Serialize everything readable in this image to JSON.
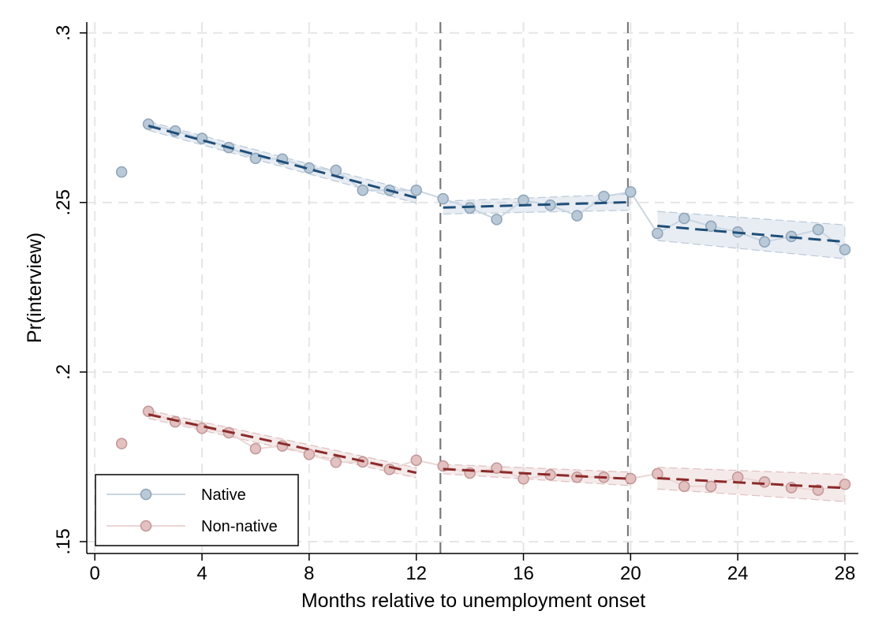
{
  "chart_data": {
    "type": "scatter",
    "title": "",
    "xlabel": "Months relative to unemployment onset",
    "ylabel": "Pr(interview)",
    "xlim": [
      -0.3,
      28.5
    ],
    "ylim": [
      0.1465,
      0.3032
    ],
    "xticks": [
      0,
      4,
      8,
      12,
      16,
      20,
      24,
      28
    ],
    "xtick_labels": [
      "0",
      "4",
      "8",
      "12",
      "16",
      "20",
      "24",
      "28"
    ],
    "yticks": [
      0.15,
      0.2,
      0.25,
      0.3
    ],
    "ytick_labels": [
      ".15",
      ".2",
      ".25",
      ".3"
    ],
    "grid": true,
    "vlines": [
      12.9,
      19.9
    ],
    "legend": {
      "position": "bottom-left",
      "entries": [
        "Native",
        "Non-native"
      ]
    },
    "series": [
      {
        "name": "Native",
        "color": "#1F4E79",
        "x": [
          1,
          2,
          3,
          4,
          5,
          6,
          7,
          8,
          9,
          10,
          11,
          12,
          13,
          14,
          15,
          16,
          17,
          18,
          19,
          20,
          21,
          22,
          23,
          24,
          25,
          26,
          27,
          28
        ],
        "y": [
          0.259,
          0.2731,
          0.2711,
          0.2689,
          0.2662,
          0.263,
          0.2628,
          0.2602,
          0.2595,
          0.2536,
          0.2536,
          0.2536,
          0.2511,
          0.2484,
          0.245,
          0.2507,
          0.2492,
          0.2461,
          0.2518,
          0.2531,
          0.2409,
          0.2453,
          0.243,
          0.2413,
          0.2384,
          0.24,
          0.242,
          0.2361
        ],
        "fits": [
          {
            "x": [
              2,
              12
            ],
            "y": [
              0.2726,
              0.2514
            ],
            "ci_low": [
              0.2713,
              0.2498
            ],
            "ci_high": [
              0.2739,
              0.253
            ]
          },
          {
            "x": [
              13,
              20
            ],
            "y": [
              0.2485,
              0.2501
            ],
            "ci_low": [
              0.2466,
              0.2477
            ],
            "ci_high": [
              0.2504,
              0.2525
            ]
          },
          {
            "x": [
              21,
              28
            ],
            "y": [
              0.2431,
              0.2384
            ],
            "ci_low": [
              0.2388,
              0.2334
            ],
            "ci_high": [
              0.2474,
              0.2434
            ]
          }
        ]
      },
      {
        "name": "Non-native",
        "color": "#8B2A2A",
        "x": [
          1,
          2,
          3,
          4,
          5,
          6,
          7,
          8,
          9,
          10,
          11,
          12,
          13,
          14,
          15,
          16,
          17,
          18,
          19,
          20,
          21,
          22,
          23,
          24,
          25,
          26,
          27,
          28
        ],
        "y": [
          0.1789,
          0.1884,
          0.1853,
          0.1834,
          0.1821,
          0.1774,
          0.1782,
          0.1757,
          0.1734,
          0.1735,
          0.1713,
          0.174,
          0.1723,
          0.1702,
          0.1717,
          0.1685,
          0.1697,
          0.169,
          0.169,
          0.1686,
          0.17,
          0.1663,
          0.1663,
          0.169,
          0.1676,
          0.1659,
          0.1652,
          0.1669
        ],
        "fits": [
          {
            "x": [
              2,
              12
            ],
            "y": [
              0.1875,
              0.1703
            ],
            "ci_low": [
              0.1863,
              0.1688
            ],
            "ci_high": [
              0.1887,
              0.1718
            ]
          },
          {
            "x": [
              13,
              20
            ],
            "y": [
              0.1714,
              0.1685
            ],
            "ci_low": [
              0.17,
              0.1665
            ],
            "ci_high": [
              0.1728,
              0.1705
            ]
          },
          {
            "x": [
              21,
              28
            ],
            "y": [
              0.1687,
              0.1658
            ],
            "ci_low": [
              0.1655,
              0.1618
            ],
            "ci_high": [
              0.1719,
              0.1698
            ]
          }
        ]
      }
    ]
  }
}
